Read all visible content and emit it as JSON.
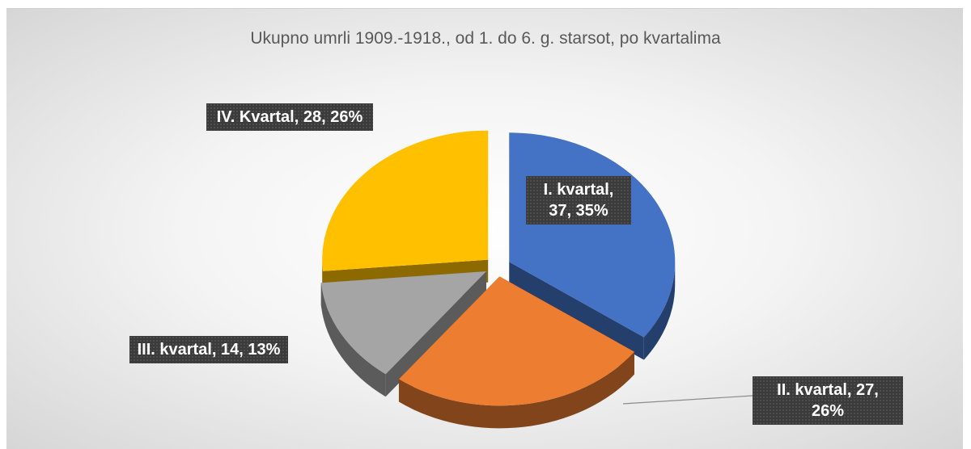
{
  "chart_data": {
    "type": "pie",
    "title": "Ukupno umrli  1909.-1918., od 1. do 6. g. starsot, po kvartalima",
    "categories": [
      "I. kvartal",
      "II. kvartal",
      "III. kvartal",
      "IV. Kvartal"
    ],
    "values": [
      37,
      27,
      14,
      28
    ],
    "value_labels": [
      "I. kvartal, 37, 35%",
      "II. kvartal, 27, 26%",
      "III. kvartal, 14, 13%",
      "IV. Kvartal, 28, 26%"
    ],
    "colors": [
      "#4472c4",
      "#ed7d31",
      "#a5a5a5",
      "#ffc000"
    ]
  }
}
